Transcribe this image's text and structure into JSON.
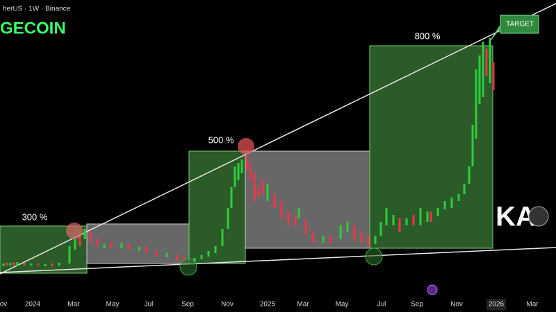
{
  "header": {
    "symbol": "herUS · 1W · Binance",
    "title": "GECOIN"
  },
  "annotations": [
    "300 %",
    "500 %",
    "800 %",
    "TARGET"
  ],
  "logo": "KA",
  "x_axis_labels": [
    "ov",
    "2024",
    "Mar",
    "May",
    "Jul",
    "Sep",
    "Nov",
    "2025",
    "Mar",
    "May",
    "Jul",
    "Sep",
    "Nov",
    "2026",
    "Mar"
  ]
}
